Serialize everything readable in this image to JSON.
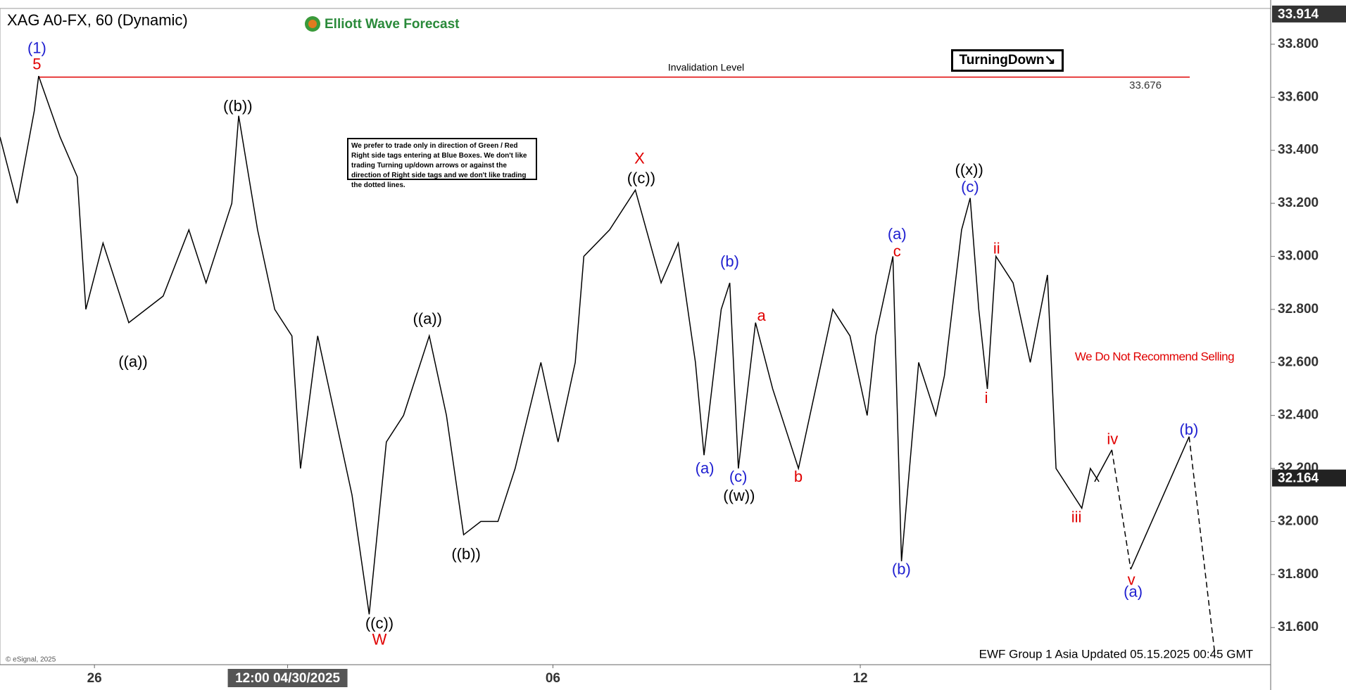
{
  "chart_data": {
    "type": "line",
    "title": "XAG A0-FX, 60 (Dynamic)",
    "logo": "Elliott Wave Forecast",
    "xlim": [
      0,
      148
    ],
    "ylim": [
      31.46,
      33.935
    ],
    "xticks": [
      {
        "value": 11,
        "label": "26"
      },
      {
        "value": 33.5,
        "label": "12:00 04/30/2025"
      },
      {
        "value": 64.4,
        "label": "06"
      },
      {
        "value": 100.2,
        "label": "12"
      }
    ],
    "yticks": [
      {
        "value": 31.6,
        "label": "31.600"
      },
      {
        "value": 31.8,
        "label": "31.800"
      },
      {
        "value": 32,
        "label": "32.000"
      },
      {
        "value": 32.2,
        "label": "32.200"
      },
      {
        "value": 32.4,
        "label": "32.400"
      },
      {
        "value": 32.6,
        "label": "32.600"
      },
      {
        "value": 32.8,
        "label": "32.800"
      },
      {
        "value": 33,
        "label": "33.000"
      },
      {
        "value": 33.2,
        "label": "33.200"
      },
      {
        "value": 33.4,
        "label": "33.400"
      },
      {
        "value": 33.6,
        "label": "33.600"
      },
      {
        "value": 33.8,
        "label": "33.800"
      }
    ],
    "series": [
      {
        "name": "XAG A0-FX",
        "color": "#000000",
        "x": [
          0,
          2,
          4,
          4.5,
          7,
          9,
          10,
          12,
          15,
          19,
          22,
          24,
          27,
          27.8,
          30,
          32,
          34,
          35,
          37,
          39,
          41,
          43,
          45,
          47,
          50,
          52,
          54,
          56,
          58,
          60,
          63,
          65,
          67,
          68,
          71,
          74,
          77,
          79,
          81,
          82,
          84,
          85,
          86,
          88,
          90,
          93,
          95,
          97,
          99,
          101,
          102,
          104,
          105,
          107,
          109,
          110,
          112,
          113,
          114,
          115,
          116,
          118,
          120,
          122,
          123,
          125,
          126,
          127,
          128
        ],
        "values": [
          33.45,
          33.2,
          33.55,
          33.68,
          33.45,
          33.3,
          32.8,
          33.05,
          32.75,
          32.85,
          33.1,
          32.9,
          33.2,
          33.53,
          33.1,
          32.8,
          32.7,
          32.2,
          32.7,
          32.4,
          32.1,
          31.65,
          32.3,
          32.4,
          32.7,
          32.4,
          31.95,
          32.0,
          32.0,
          32.2,
          32.6,
          32.3,
          32.6,
          33.0,
          33.1,
          33.25,
          32.9,
          33.05,
          32.6,
          32.25,
          32.8,
          32.9,
          32.2,
          32.75,
          32.5,
          32.2,
          32.5,
          32.8,
          32.7,
          32.4,
          32.7,
          33.0,
          31.85,
          32.6,
          32.4,
          32.55,
          33.1,
          33.22,
          32.8,
          32.5,
          33.0,
          32.9,
          32.6,
          32.93,
          32.2,
          32.1,
          32.05,
          32.2,
          32.15
        ]
      },
      {
        "name": "Projection 1",
        "color": "#000000",
        "x": [
          127.5,
          129.5
        ],
        "values": [
          32.15,
          32.27
        ]
      },
      {
        "name": "Projection 2",
        "color": "#000000",
        "dashed": true,
        "x": [
          129.5,
          131.7
        ],
        "values": [
          32.27,
          31.82
        ]
      },
      {
        "name": "Projection 3",
        "color": "#000000",
        "x": [
          131.7,
          138.5
        ],
        "values": [
          31.82,
          32.32
        ]
      },
      {
        "name": "Projection 4",
        "color": "#000000",
        "dashed": true,
        "x": [
          138.5,
          141.5
        ],
        "values": [
          32.32,
          31.5
        ]
      }
    ],
    "invalidation": {
      "label": "Invalidation Level",
      "value": 33.676,
      "value_label": "33.676"
    },
    "price_high": {
      "value": 33.914,
      "label": "33.914"
    },
    "price_last": {
      "value": 32.164,
      "label": "32.164"
    },
    "turning": "TurningDown↘",
    "note": "We prefer to trade only in direction of Green / Red Right side tags entering at Blue Boxes. We don't like trading Turning up/down arrows or against the direction of Right side tags and we don't like trading the dotted lines.",
    "recommendation": "We Do Not Recommend Selling",
    "footer": "EWF Group 1 Asia Updated 05.15.2025 00:45 GMT",
    "copyright": "© eSignal, 2025",
    "wave_labels": [
      {
        "text": "(1)",
        "color": "#1f1fd0"
      },
      {
        "text": "5",
        "color": "#e00000"
      },
      {
        "text": "((b))",
        "color": "#000000"
      },
      {
        "text": "((a))",
        "color": "#000000"
      },
      {
        "text": "((c))",
        "color": "#000000"
      },
      {
        "text": "W",
        "color": "#e00000"
      },
      {
        "text": "((a))",
        "color": "#000000"
      },
      {
        "text": "((b))",
        "color": "#000000"
      },
      {
        "text": "X",
        "color": "#e00000"
      },
      {
        "text": "((c))",
        "color": "#000000"
      },
      {
        "text": "(a)",
        "color": "#1f1fd0"
      },
      {
        "text": "(b)",
        "color": "#1f1fd0"
      },
      {
        "text": "(c)",
        "color": "#1f1fd0"
      },
      {
        "text": "((w))",
        "color": "#000000"
      },
      {
        "text": "a",
        "color": "#e00000"
      },
      {
        "text": "b",
        "color": "#e00000"
      },
      {
        "text": "(a)",
        "color": "#1f1fd0"
      },
      {
        "text": "c",
        "color": "#e00000"
      },
      {
        "text": "(b)",
        "color": "#1f1fd0"
      },
      {
        "text": "((x))",
        "color": "#000000"
      },
      {
        "text": "(c)",
        "color": "#1f1fd0"
      },
      {
        "text": "ii",
        "color": "#e00000"
      },
      {
        "text": "i",
        "color": "#e00000"
      },
      {
        "text": "iii",
        "color": "#e00000"
      },
      {
        "text": "iv",
        "color": "#e00000"
      },
      {
        "text": "(b)",
        "color": "#1f1fd0"
      },
      {
        "text": "v",
        "color": "#e00000"
      },
      {
        "text": "(a)",
        "color": "#1f1fd0"
      }
    ]
  }
}
